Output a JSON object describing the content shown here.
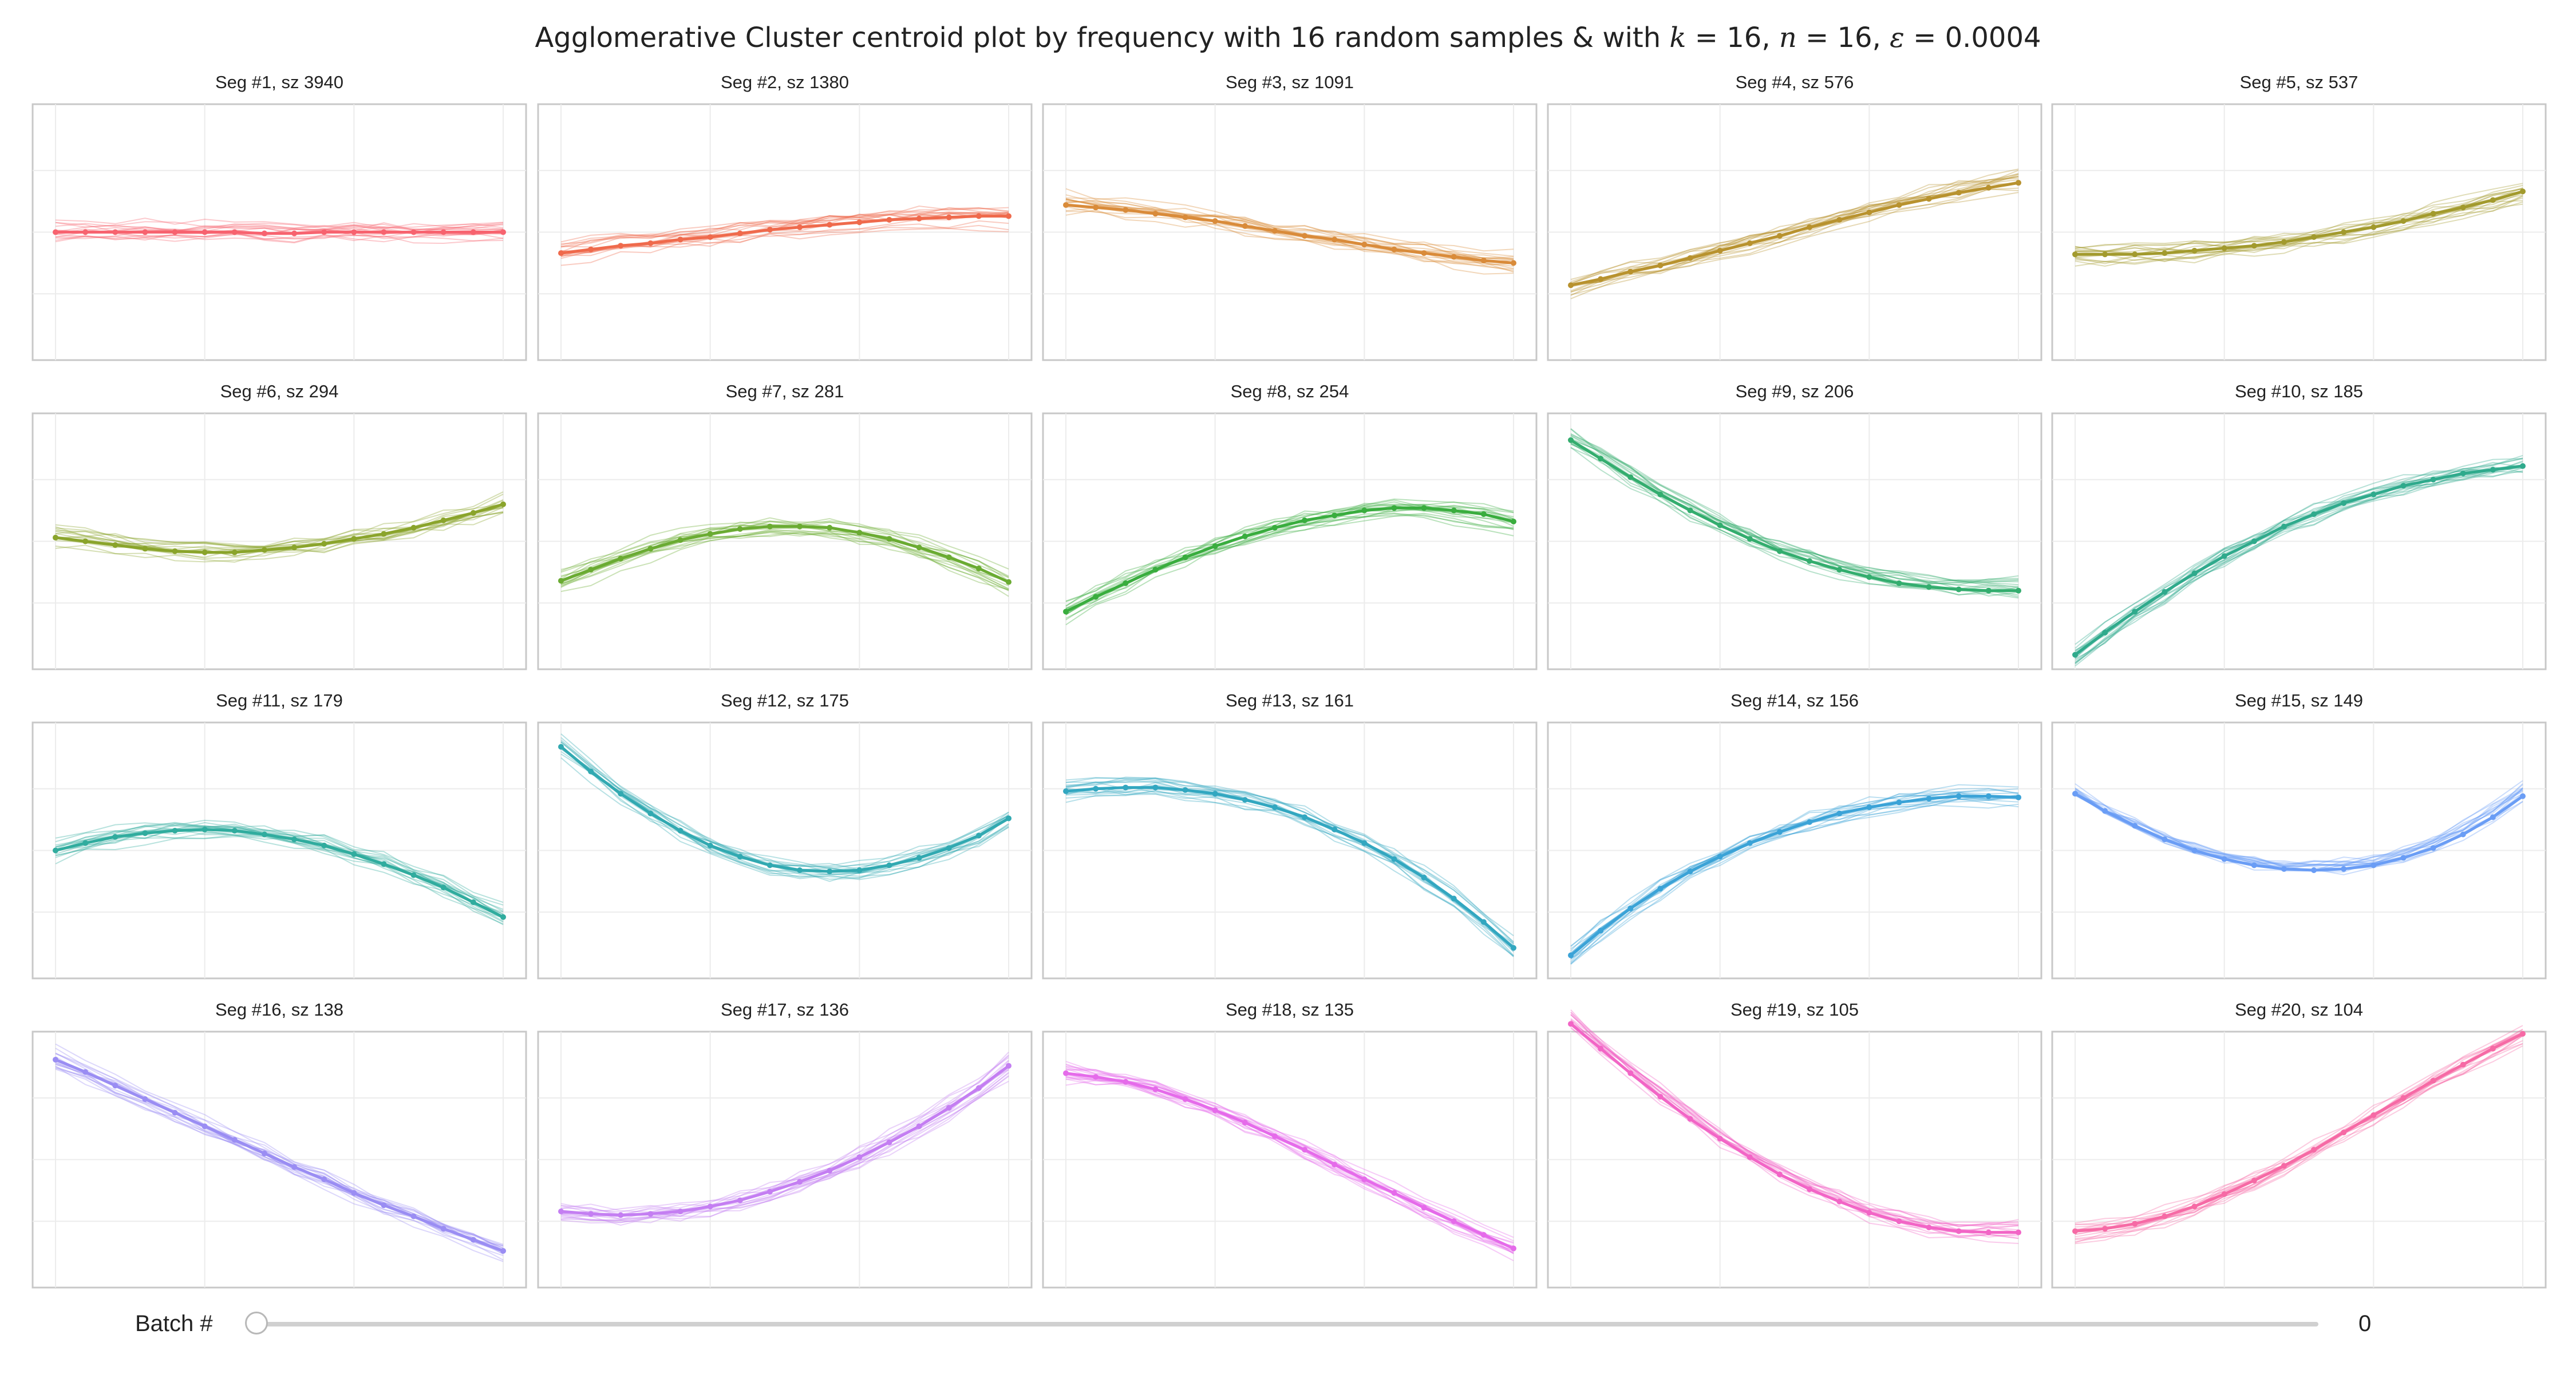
{
  "title": {
    "prefix": "Agglomerative Cluster centroid plot by frequency with 16 random samples & with ",
    "k": "16",
    "n": "16",
    "eps": "0.0004"
  },
  "slider": {
    "label": "Batch #",
    "value": "0",
    "position": 0
  },
  "chart_data": {
    "type": "line",
    "x": [
      0,
      1,
      2,
      3,
      4,
      5,
      6,
      7,
      8,
      9,
      10,
      11,
      12,
      13,
      14,
      15
    ],
    "xlim": [
      0,
      15
    ],
    "ylim": [
      -1,
      1
    ],
    "grid": true,
    "samples_per_panel": 16,
    "panels": [
      {
        "title": "Seg #1, sz 3940",
        "color": "#f7636f",
        "centroid": [
          0.0,
          0.0,
          0.0,
          0.0,
          0.0,
          0.0,
          0.0,
          -0.01,
          -0.01,
          0.0,
          0.0,
          0.0,
          0.0,
          0.0,
          0.0,
          0.0
        ]
      },
      {
        "title": "Seg #2, sz 1380",
        "color": "#ef6a4c",
        "centroid": [
          -0.17,
          -0.14,
          -0.11,
          -0.09,
          -0.06,
          -0.04,
          -0.01,
          0.02,
          0.04,
          0.06,
          0.08,
          0.1,
          0.11,
          0.12,
          0.13,
          0.13
        ]
      },
      {
        "title": "Seg #3, sz 1091",
        "color": "#d98b3a",
        "centroid": [
          0.22,
          0.2,
          0.18,
          0.15,
          0.12,
          0.09,
          0.05,
          0.01,
          -0.03,
          -0.06,
          -0.1,
          -0.14,
          -0.17,
          -0.2,
          -0.23,
          -0.25
        ]
      },
      {
        "title": "Seg #4, sz 576",
        "color": "#b8922e",
        "centroid": [
          -0.43,
          -0.38,
          -0.32,
          -0.27,
          -0.21,
          -0.15,
          -0.09,
          -0.03,
          0.04,
          0.1,
          0.16,
          0.22,
          0.27,
          0.32,
          0.36,
          0.4
        ]
      },
      {
        "title": "Seg #5, sz 537",
        "color": "#a29a2d",
        "centroid": [
          -0.18,
          -0.18,
          -0.18,
          -0.17,
          -0.15,
          -0.13,
          -0.11,
          -0.08,
          -0.04,
          0.0,
          0.04,
          0.09,
          0.15,
          0.2,
          0.26,
          0.33
        ]
      },
      {
        "title": "Seg #6, sz 294",
        "color": "#8aa42b",
        "centroid": [
          0.03,
          0.0,
          -0.03,
          -0.06,
          -0.08,
          -0.09,
          -0.09,
          -0.07,
          -0.05,
          -0.02,
          0.02,
          0.06,
          0.11,
          0.17,
          0.23,
          0.3
        ]
      },
      {
        "title": "Seg #7, sz 281",
        "color": "#6aab32",
        "centroid": [
          -0.32,
          -0.23,
          -0.14,
          -0.06,
          0.01,
          0.06,
          0.1,
          0.12,
          0.12,
          0.11,
          0.07,
          0.02,
          -0.05,
          -0.13,
          -0.22,
          -0.33
        ]
      },
      {
        "title": "Seg #8, sz 254",
        "color": "#39ad3e",
        "centroid": [
          -0.57,
          -0.45,
          -0.34,
          -0.23,
          -0.13,
          -0.04,
          0.04,
          0.11,
          0.17,
          0.21,
          0.25,
          0.27,
          0.27,
          0.25,
          0.22,
          0.16
        ]
      },
      {
        "title": "Seg #9, sz 206",
        "color": "#33ad6e",
        "centroid": [
          0.82,
          0.67,
          0.52,
          0.38,
          0.25,
          0.13,
          0.02,
          -0.08,
          -0.16,
          -0.23,
          -0.29,
          -0.34,
          -0.37,
          -0.39,
          -0.4,
          -0.4
        ]
      },
      {
        "title": "Seg #10, sz 185",
        "color": "#2faa8c",
        "centroid": [
          -0.92,
          -0.74,
          -0.57,
          -0.41,
          -0.26,
          -0.12,
          0.0,
          0.12,
          0.22,
          0.31,
          0.38,
          0.45,
          0.5,
          0.55,
          0.58,
          0.61
        ]
      },
      {
        "title": "Seg #11, sz 179",
        "color": "#30ac9e",
        "centroid": [
          0.0,
          0.06,
          0.11,
          0.14,
          0.16,
          0.17,
          0.16,
          0.13,
          0.09,
          0.04,
          -0.03,
          -0.11,
          -0.2,
          -0.3,
          -0.42,
          -0.54
        ]
      },
      {
        "title": "Seg #12, sz 175",
        "color": "#31a9b1",
        "centroid": [
          0.84,
          0.64,
          0.46,
          0.3,
          0.16,
          0.04,
          -0.05,
          -0.12,
          -0.16,
          -0.17,
          -0.16,
          -0.12,
          -0.06,
          0.02,
          0.12,
          0.26
        ]
      },
      {
        "title": "Seg #13, sz 161",
        "color": "#32a7c0",
        "centroid": [
          0.48,
          0.5,
          0.51,
          0.51,
          0.49,
          0.46,
          0.41,
          0.35,
          0.27,
          0.17,
          0.06,
          -0.07,
          -0.22,
          -0.39,
          -0.58,
          -0.79
        ]
      },
      {
        "title": "Seg #14, sz 156",
        "color": "#3ba3d7",
        "centroid": [
          -0.85,
          -0.65,
          -0.47,
          -0.31,
          -0.17,
          -0.05,
          0.06,
          0.15,
          0.23,
          0.3,
          0.35,
          0.39,
          0.42,
          0.44,
          0.44,
          0.43
        ]
      },
      {
        "title": "Seg #15, sz 149",
        "color": "#6a9df5",
        "centroid": [
          0.46,
          0.32,
          0.2,
          0.09,
          0.0,
          -0.07,
          -0.12,
          -0.15,
          -0.16,
          -0.15,
          -0.12,
          -0.06,
          0.02,
          0.13,
          0.27,
          0.44
        ]
      },
      {
        "title": "Seg #16, sz 138",
        "color": "#9a8df3",
        "centroid": [
          0.81,
          0.71,
          0.6,
          0.49,
          0.38,
          0.27,
          0.16,
          0.05,
          -0.06,
          -0.16,
          -0.27,
          -0.37,
          -0.46,
          -0.56,
          -0.65,
          -0.74
        ]
      },
      {
        "title": "Seg #17, sz 136",
        "color": "#c47ef2",
        "centroid": [
          -0.42,
          -0.44,
          -0.45,
          -0.44,
          -0.42,
          -0.38,
          -0.33,
          -0.26,
          -0.18,
          -0.09,
          0.02,
          0.14,
          0.27,
          0.42,
          0.58,
          0.76
        ]
      },
      {
        "title": "Seg #18, sz 135",
        "color": "#e56bea",
        "centroid": [
          0.7,
          0.67,
          0.63,
          0.57,
          0.49,
          0.4,
          0.3,
          0.19,
          0.08,
          -0.04,
          -0.16,
          -0.27,
          -0.39,
          -0.5,
          -0.61,
          -0.72
        ]
      },
      {
        "title": "Seg #19, sz 105",
        "color": "#f265c6",
        "centroid": [
          1.1,
          0.9,
          0.7,
          0.51,
          0.33,
          0.17,
          0.02,
          -0.12,
          -0.24,
          -0.34,
          -0.43,
          -0.5,
          -0.55,
          -0.58,
          -0.59,
          -0.59
        ]
      },
      {
        "title": "Seg #20, sz 104",
        "color": "#f66aa5",
        "centroid": [
          -0.58,
          -0.56,
          -0.52,
          -0.46,
          -0.38,
          -0.28,
          -0.17,
          -0.05,
          0.08,
          0.22,
          0.36,
          0.5,
          0.64,
          0.77,
          0.9,
          1.02
        ]
      }
    ]
  }
}
